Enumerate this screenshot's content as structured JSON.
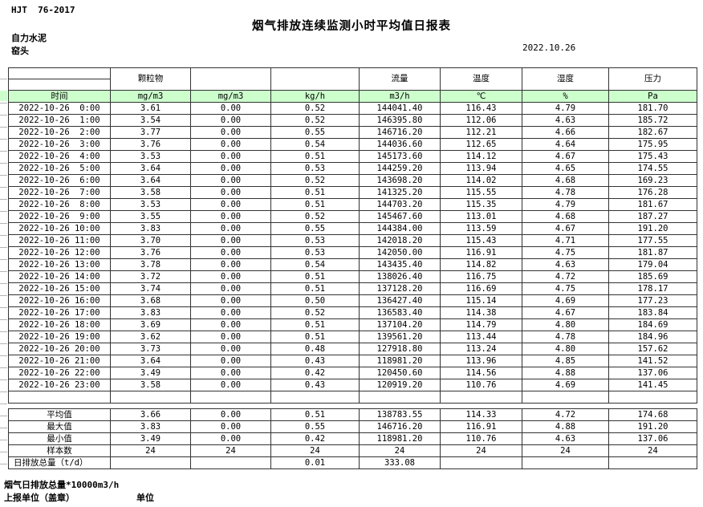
{
  "meta": {
    "standard": "HJT  76-2017",
    "title": "烟气排放连续监测小时平均值日报表",
    "company": "自力水泥",
    "station": "窑头",
    "date": "2022.10.26"
  },
  "colors": {
    "header_green": "#ccffcc",
    "border": "#333333"
  },
  "table": {
    "group_headers": [
      "",
      "颗粒物",
      "",
      "",
      "流量",
      "温度",
      "湿度",
      "压力"
    ],
    "unit_headers": [
      "时间",
      "mg/m3",
      "mg/m3",
      "kg/h",
      "m3/h",
      "℃",
      "%",
      "Pa"
    ],
    "rows": [
      {
        "time": "2022-10-26  0:00",
        "values": [
          "3.61",
          "0.00",
          "0.52",
          "144041.40",
          "116.43",
          "4.79",
          "181.70"
        ]
      },
      {
        "time": "2022-10-26  1:00",
        "values": [
          "3.54",
          "0.00",
          "0.52",
          "146395.80",
          "112.06",
          "4.63",
          "185.72"
        ]
      },
      {
        "time": "2022-10-26  2:00",
        "values": [
          "3.77",
          "0.00",
          "0.55",
          "146716.20",
          "112.21",
          "4.66",
          "182.67"
        ]
      },
      {
        "time": "2022-10-26  3:00",
        "values": [
          "3.76",
          "0.00",
          "0.54",
          "144036.60",
          "112.65",
          "4.64",
          "175.95"
        ]
      },
      {
        "time": "2022-10-26  4:00",
        "values": [
          "3.53",
          "0.00",
          "0.51",
          "145173.60",
          "114.12",
          "4.67",
          "175.43"
        ]
      },
      {
        "time": "2022-10-26  5:00",
        "values": [
          "3.64",
          "0.00",
          "0.53",
          "144259.20",
          "113.94",
          "4.65",
          "174.55"
        ]
      },
      {
        "time": "2022-10-26  6:00",
        "values": [
          "3.64",
          "0.00",
          "0.52",
          "143698.20",
          "114.02",
          "4.68",
          "169.23"
        ]
      },
      {
        "time": "2022-10-26  7:00",
        "values": [
          "3.58",
          "0.00",
          "0.51",
          "141325.20",
          "115.55",
          "4.78",
          "176.28"
        ]
      },
      {
        "time": "2022-10-26  8:00",
        "values": [
          "3.53",
          "0.00",
          "0.51",
          "144703.20",
          "115.35",
          "4.79",
          "181.67"
        ]
      },
      {
        "time": "2022-10-26  9:00",
        "values": [
          "3.55",
          "0.00",
          "0.52",
          "145467.60",
          "113.01",
          "4.68",
          "187.27"
        ]
      },
      {
        "time": "2022-10-26 10:00",
        "values": [
          "3.83",
          "0.00",
          "0.55",
          "144384.00",
          "113.59",
          "4.67",
          "191.20"
        ]
      },
      {
        "time": "2022-10-26 11:00",
        "values": [
          "3.70",
          "0.00",
          "0.53",
          "142018.20",
          "115.43",
          "4.71",
          "177.55"
        ]
      },
      {
        "time": "2022-10-26 12:00",
        "values": [
          "3.76",
          "0.00",
          "0.53",
          "142050.00",
          "116.91",
          "4.75",
          "181.87"
        ]
      },
      {
        "time": "2022-10-26 13:00",
        "values": [
          "3.78",
          "0.00",
          "0.54",
          "143435.40",
          "114.82",
          "4.63",
          "179.04"
        ]
      },
      {
        "time": "2022-10-26 14:00",
        "values": [
          "3.72",
          "0.00",
          "0.51",
          "138026.40",
          "116.75",
          "4.72",
          "185.69"
        ]
      },
      {
        "time": "2022-10-26 15:00",
        "values": [
          "3.74",
          "0.00",
          "0.51",
          "137128.20",
          "116.69",
          "4.75",
          "178.17"
        ]
      },
      {
        "time": "2022-10-26 16:00",
        "values": [
          "3.68",
          "0.00",
          "0.50",
          "136427.40",
          "115.14",
          "4.69",
          "177.23"
        ]
      },
      {
        "time": "2022-10-26 17:00",
        "values": [
          "3.83",
          "0.00",
          "0.52",
          "136583.40",
          "114.38",
          "4.67",
          "183.84"
        ]
      },
      {
        "time": "2022-10-26 18:00",
        "values": [
          "3.69",
          "0.00",
          "0.51",
          "137104.20",
          "114.79",
          "4.80",
          "184.69"
        ]
      },
      {
        "time": "2022-10-26 19:00",
        "values": [
          "3.62",
          "0.00",
          "0.51",
          "139561.20",
          "113.44",
          "4.78",
          "184.96"
        ]
      },
      {
        "time": "2022-10-26 20:00",
        "values": [
          "3.73",
          "0.00",
          "0.48",
          "127918.80",
          "113.24",
          "4.80",
          "157.62"
        ]
      },
      {
        "time": "2022-10-26 21:00",
        "values": [
          "3.64",
          "0.00",
          "0.43",
          "118981.20",
          "113.96",
          "4.85",
          "141.52"
        ]
      },
      {
        "time": "2022-10-26 22:00",
        "values": [
          "3.49",
          "0.00",
          "0.42",
          "120450.60",
          "114.56",
          "4.88",
          "137.06"
        ]
      },
      {
        "time": "2022-10-26 23:00",
        "values": [
          "3.58",
          "0.00",
          "0.43",
          "120919.20",
          "110.76",
          "4.69",
          "141.45"
        ]
      }
    ],
    "summary": [
      {
        "label": "平均值",
        "values": [
          "3.66",
          "0.00",
          "0.51",
          "138783.55",
          "114.33",
          "4.72",
          "174.68"
        ]
      },
      {
        "label": "最大值",
        "values": [
          "3.83",
          "0.00",
          "0.55",
          "146716.20",
          "116.91",
          "4.88",
          "191.20"
        ]
      },
      {
        "label": "最小值",
        "values": [
          "3.49",
          "0.00",
          "0.42",
          "118981.20",
          "110.76",
          "4.63",
          "137.06"
        ]
      },
      {
        "label": "样本数",
        "values": [
          "24",
          "24",
          "24",
          "24",
          "24",
          "24",
          "24"
        ]
      },
      {
        "label": "日排放总量（t/d）",
        "values": [
          "",
          "",
          "0.01",
          "333.08",
          "",
          "",
          ""
        ]
      }
    ]
  },
  "footer": {
    "note": "烟气日排放总量*10000m3/h",
    "report_unit": "上报单位（盖章）",
    "unit_label": "单位"
  }
}
